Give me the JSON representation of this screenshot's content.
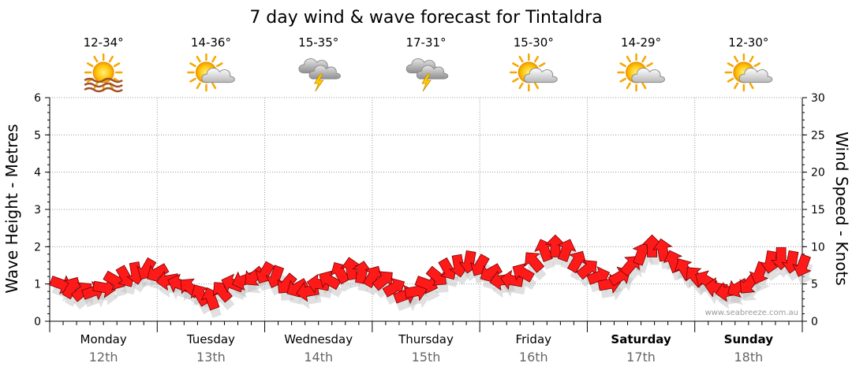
{
  "title": "7 day wind & wave forecast for Tintaldra",
  "credit": "www.seabreeze.com.au",
  "colors": {
    "arrow_fill": "#ff1a1a",
    "arrow_stroke": "#7a0000",
    "shadow": "#bbbbbb",
    "grid": "#999999"
  },
  "days": [
    {
      "name": "Monday",
      "date": "12th",
      "temp": "12-34°",
      "icon": "sun-haze-icon",
      "bold": false
    },
    {
      "name": "Tuesday",
      "date": "13th",
      "temp": "14-36°",
      "icon": "sun-cloud-icon",
      "bold": false
    },
    {
      "name": "Wednesday",
      "date": "14th",
      "temp": "15-35°",
      "icon": "storm-cloud-icon",
      "bold": false
    },
    {
      "name": "Thursday",
      "date": "15th",
      "temp": "17-31°",
      "icon": "storm-cloud-icon",
      "bold": false
    },
    {
      "name": "Friday",
      "date": "16th",
      "temp": "15-30°",
      "icon": "sun-cloud-icon",
      "bold": false
    },
    {
      "name": "Saturday",
      "date": "17th",
      "temp": "14-29°",
      "icon": "sun-cloud-icon",
      "bold": true
    },
    {
      "name": "Sunday",
      "date": "18th",
      "temp": "12-30°",
      "icon": "sun-cloud-icon",
      "bold": true
    }
  ],
  "chart_data": {
    "type": "line",
    "ylabel": "Wave Height - Metres",
    "y2label": "Wind Speed - Knots",
    "ylim": [
      0,
      6
    ],
    "y2lim": [
      0,
      30
    ],
    "yticks": [
      0,
      1,
      2,
      3,
      4,
      5,
      6
    ],
    "y2ticks": [
      0,
      5,
      10,
      15,
      20,
      25,
      30
    ],
    "grid": true,
    "series": [
      {
        "marker": "wind-direction-arrow",
        "axis": "right",
        "x_days": [
          0.0,
          0.1,
          0.2,
          0.3,
          0.4,
          0.5,
          0.6,
          0.7,
          0.8,
          0.9,
          1.0,
          1.1,
          1.2,
          1.3,
          1.4,
          1.5,
          1.6,
          1.7,
          1.8,
          1.9,
          2.0,
          2.1,
          2.2,
          2.3,
          2.4,
          2.5,
          2.6,
          2.7,
          2.8,
          2.9,
          3.0,
          3.1,
          3.2,
          3.3,
          3.4,
          3.5,
          3.6,
          3.7,
          3.8,
          3.9,
          4.0,
          4.1,
          4.2,
          4.3,
          4.4,
          4.5,
          4.6,
          4.7,
          4.8,
          4.9,
          5.0,
          5.1,
          5.2,
          5.3,
          5.4,
          5.5,
          5.6,
          5.7,
          5.8,
          5.9,
          6.0,
          6.1,
          6.2,
          6.3,
          6.4,
          6.5,
          6.6,
          6.7,
          6.8,
          6.9
        ],
        "values": [
          5,
          4.5,
          4,
          4,
          4.5,
          5.5,
          6,
          6.5,
          7,
          6.5,
          5.5,
          5,
          4.5,
          3.5,
          3,
          4,
          5,
          5.5,
          6,
          6.5,
          6,
          5,
          4.5,
          4,
          5,
          5.5,
          6.5,
          7,
          6.5,
          6,
          5.5,
          4.5,
          3.5,
          4,
          5,
          6,
          7,
          7.5,
          8,
          7.5,
          6.5,
          5.5,
          5.5,
          6.5,
          8,
          9.5,
          10,
          9.5,
          8,
          7,
          6,
          5,
          6,
          7.5,
          9,
          10,
          9.5,
          8,
          7,
          6,
          5.5,
          4.5,
          4,
          4.5,
          5,
          6.5,
          8,
          8.5,
          8,
          7.5
        ],
        "directions_deg": [
          20,
          300,
          320,
          340,
          10,
          30,
          60,
          80,
          120,
          150,
          170,
          200,
          220,
          240,
          250,
          230,
          200,
          160,
          140,
          120,
          110,
          130,
          150,
          170,
          190,
          210,
          240,
          260,
          280,
          300,
          320,
          330,
          340,
          350,
          20,
          40,
          60,
          80,
          100,
          120,
          150,
          170,
          190,
          210,
          230,
          250,
          270,
          290,
          300,
          320,
          340,
          350,
          330,
          310,
          290,
          270,
          260,
          250,
          240,
          230,
          210,
          190,
          170,
          150,
          130,
          110,
          100,
          90,
          100,
          110
        ]
      }
    ]
  }
}
